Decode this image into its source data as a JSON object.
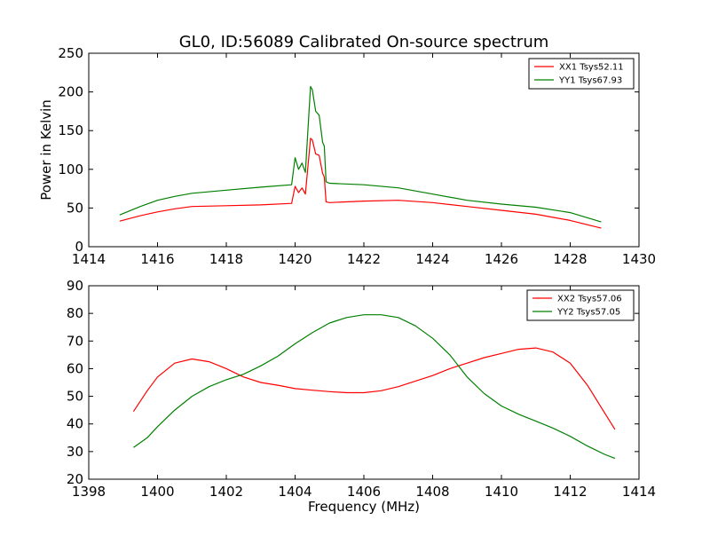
{
  "figure": {
    "title": "GL0, ID:56089 Calibrated On-source spectrum",
    "ylabel": "Power in Kelvin",
    "xlabel": "Frequency (MHz)"
  },
  "chart_data": [
    {
      "type": "line",
      "title": "GL0, ID:56089 Calibrated On-source spectrum",
      "xlabel": "",
      "ylabel": "Power in Kelvin",
      "xlim": [
        1414,
        1430
      ],
      "ylim": [
        0,
        250
      ],
      "xticks": [
        1414,
        1416,
        1418,
        1420,
        1422,
        1424,
        1426,
        1428,
        1430
      ],
      "yticks": [
        0,
        50,
        100,
        150,
        200,
        250
      ],
      "grid": false,
      "legend": "top-right",
      "series": [
        {
          "name": "XX1 Tsys52.11",
          "color": "#ff0000",
          "x": [
            1414.9,
            1415.5,
            1416.0,
            1416.5,
            1417.0,
            1418.0,
            1419.0,
            1419.9,
            1420.0,
            1420.1,
            1420.2,
            1420.3,
            1420.45,
            1420.5,
            1420.6,
            1420.7,
            1420.8,
            1420.85,
            1420.9,
            1421.0,
            1422.0,
            1423.0,
            1424.0,
            1425.0,
            1426.0,
            1427.0,
            1428.0,
            1428.9
          ],
          "y": [
            33,
            40,
            45,
            49,
            52,
            53,
            54,
            56,
            78,
            70,
            76,
            68,
            140,
            138,
            120,
            118,
            95,
            90,
            58,
            57,
            59,
            60,
            57,
            52,
            47,
            42,
            34,
            24
          ]
        },
        {
          "name": "YY1 Tsys67.93",
          "color": "#008000",
          "x": [
            1414.9,
            1415.5,
            1416.0,
            1416.5,
            1417.0,
            1418.0,
            1419.0,
            1419.9,
            1420.0,
            1420.1,
            1420.2,
            1420.3,
            1420.45,
            1420.5,
            1420.6,
            1420.7,
            1420.8,
            1420.85,
            1420.9,
            1421.0,
            1422.0,
            1423.0,
            1424.0,
            1425.0,
            1426.0,
            1427.0,
            1428.0,
            1428.9
          ],
          "y": [
            41,
            52,
            60,
            65,
            69,
            73,
            77,
            80,
            115,
            100,
            108,
            96,
            207,
            203,
            175,
            170,
            135,
            130,
            84,
            82,
            80,
            76,
            68,
            60,
            55,
            51,
            44,
            32
          ]
        }
      ]
    },
    {
      "type": "line",
      "title": "",
      "xlabel": "Frequency (MHz)",
      "ylabel": "",
      "xlim": [
        1398,
        1414
      ],
      "ylim": [
        20,
        90
      ],
      "xticks": [
        1398,
        1400,
        1402,
        1404,
        1406,
        1408,
        1410,
        1412,
        1414
      ],
      "yticks": [
        20,
        30,
        40,
        50,
        60,
        70,
        80,
        90
      ],
      "grid": false,
      "legend": "top-right",
      "series": [
        {
          "name": "XX2 Tsys57.06",
          "color": "#ff0000",
          "x": [
            1399.3,
            1399.7,
            1400.0,
            1400.5,
            1401.0,
            1401.5,
            1402.0,
            1402.5,
            1403.0,
            1403.5,
            1404.0,
            1404.5,
            1405.0,
            1405.5,
            1406.0,
            1406.5,
            1407.0,
            1407.5,
            1408.0,
            1408.5,
            1409.0,
            1409.5,
            1410.0,
            1410.5,
            1411.0,
            1411.5,
            1412.0,
            1412.5,
            1413.0,
            1413.3
          ],
          "y": [
            44.5,
            52,
            57,
            62,
            63.5,
            62.5,
            60,
            57,
            55,
            54,
            52.8,
            52.2,
            51.7,
            51.3,
            51.3,
            52,
            53.5,
            55.5,
            57.5,
            60,
            62,
            64,
            65.5,
            67,
            67.5,
            66,
            62,
            54,
            44,
            38
          ]
        },
        {
          "name": "YY2 Tsys57.05",
          "color": "#008000",
          "x": [
            1399.3,
            1399.7,
            1400.0,
            1400.5,
            1401.0,
            1401.5,
            1402.0,
            1402.5,
            1403.0,
            1403.5,
            1404.0,
            1404.5,
            1405.0,
            1405.5,
            1406.0,
            1406.5,
            1407.0,
            1407.5,
            1408.0,
            1408.5,
            1409.0,
            1409.5,
            1410.0,
            1410.5,
            1411.0,
            1411.5,
            1412.0,
            1412.5,
            1413.0,
            1413.3
          ],
          "y": [
            31.5,
            35,
            39,
            45,
            50,
            53.5,
            56,
            58,
            61,
            64.5,
            69,
            73,
            76.5,
            78.5,
            79.5,
            79.5,
            78.5,
            75.5,
            71,
            65,
            57,
            51,
            46.5,
            43.5,
            41,
            38.5,
            35.5,
            32,
            29,
            27.5
          ]
        }
      ]
    }
  ]
}
